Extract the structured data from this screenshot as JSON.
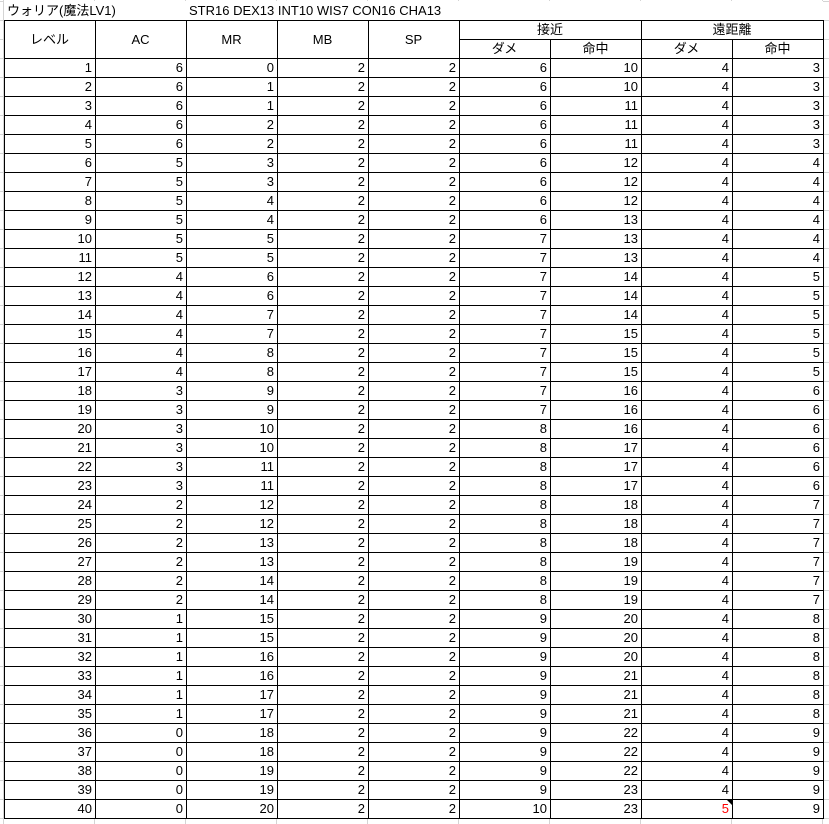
{
  "sheet": {
    "title": "ウォリア(魔法LV1)",
    "stats": "STR16 DEX13 INT10 WIS7 CON16 CHA13"
  },
  "headers": {
    "level": "レベル",
    "ac": "AC",
    "mr": "MR",
    "mb": "MB",
    "sp": "SP",
    "melee": "接近",
    "ranged": "遠距離",
    "melee_dmg": "ダメ",
    "melee_hit": "命中",
    "ranged_dmg": "ダメ",
    "ranged_hit": "命中"
  },
  "highlight": {
    "level": 40,
    "column_index": 7,
    "color": "#ff0000",
    "has_comment": true
  },
  "rows": [
    [
      1,
      6,
      0,
      2,
      2,
      6,
      10,
      4,
      3
    ],
    [
      2,
      6,
      1,
      2,
      2,
      6,
      10,
      4,
      3
    ],
    [
      3,
      6,
      1,
      2,
      2,
      6,
      11,
      4,
      3
    ],
    [
      4,
      6,
      2,
      2,
      2,
      6,
      11,
      4,
      3
    ],
    [
      5,
      6,
      2,
      2,
      2,
      6,
      11,
      4,
      3
    ],
    [
      6,
      5,
      3,
      2,
      2,
      6,
      12,
      4,
      4
    ],
    [
      7,
      5,
      3,
      2,
      2,
      6,
      12,
      4,
      4
    ],
    [
      8,
      5,
      4,
      2,
      2,
      6,
      12,
      4,
      4
    ],
    [
      9,
      5,
      4,
      2,
      2,
      6,
      13,
      4,
      4
    ],
    [
      10,
      5,
      5,
      2,
      2,
      7,
      13,
      4,
      4
    ],
    [
      11,
      5,
      5,
      2,
      2,
      7,
      13,
      4,
      4
    ],
    [
      12,
      4,
      6,
      2,
      2,
      7,
      14,
      4,
      5
    ],
    [
      13,
      4,
      6,
      2,
      2,
      7,
      14,
      4,
      5
    ],
    [
      14,
      4,
      7,
      2,
      2,
      7,
      14,
      4,
      5
    ],
    [
      15,
      4,
      7,
      2,
      2,
      7,
      15,
      4,
      5
    ],
    [
      16,
      4,
      8,
      2,
      2,
      7,
      15,
      4,
      5
    ],
    [
      17,
      4,
      8,
      2,
      2,
      7,
      15,
      4,
      5
    ],
    [
      18,
      3,
      9,
      2,
      2,
      7,
      16,
      4,
      6
    ],
    [
      19,
      3,
      9,
      2,
      2,
      7,
      16,
      4,
      6
    ],
    [
      20,
      3,
      10,
      2,
      2,
      8,
      16,
      4,
      6
    ],
    [
      21,
      3,
      10,
      2,
      2,
      8,
      17,
      4,
      6
    ],
    [
      22,
      3,
      11,
      2,
      2,
      8,
      17,
      4,
      6
    ],
    [
      23,
      3,
      11,
      2,
      2,
      8,
      17,
      4,
      6
    ],
    [
      24,
      2,
      12,
      2,
      2,
      8,
      18,
      4,
      7
    ],
    [
      25,
      2,
      12,
      2,
      2,
      8,
      18,
      4,
      7
    ],
    [
      26,
      2,
      13,
      2,
      2,
      8,
      18,
      4,
      7
    ],
    [
      27,
      2,
      13,
      2,
      2,
      8,
      19,
      4,
      7
    ],
    [
      28,
      2,
      14,
      2,
      2,
      8,
      19,
      4,
      7
    ],
    [
      29,
      2,
      14,
      2,
      2,
      8,
      19,
      4,
      7
    ],
    [
      30,
      1,
      15,
      2,
      2,
      9,
      20,
      4,
      8
    ],
    [
      31,
      1,
      15,
      2,
      2,
      9,
      20,
      4,
      8
    ],
    [
      32,
      1,
      16,
      2,
      2,
      9,
      20,
      4,
      8
    ],
    [
      33,
      1,
      16,
      2,
      2,
      9,
      21,
      4,
      8
    ],
    [
      34,
      1,
      17,
      2,
      2,
      9,
      21,
      4,
      8
    ],
    [
      35,
      1,
      17,
      2,
      2,
      9,
      21,
      4,
      8
    ],
    [
      36,
      0,
      18,
      2,
      2,
      9,
      22,
      4,
      9
    ],
    [
      37,
      0,
      18,
      2,
      2,
      9,
      22,
      4,
      9
    ],
    [
      38,
      0,
      19,
      2,
      2,
      9,
      22,
      4,
      9
    ],
    [
      39,
      0,
      19,
      2,
      2,
      9,
      23,
      4,
      9
    ],
    [
      40,
      0,
      20,
      2,
      2,
      10,
      23,
      5,
      9
    ]
  ]
}
